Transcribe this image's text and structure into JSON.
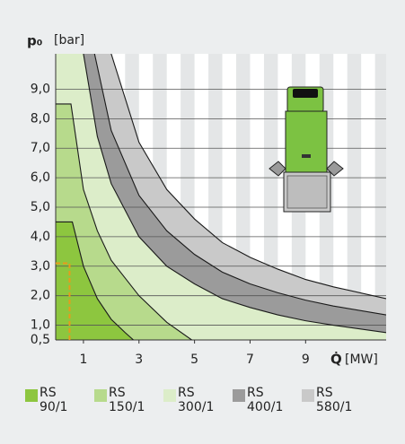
{
  "chart_data": {
    "type": "area",
    "ylabel_symbol": "p₀",
    "ylabel_unit": "[bar]",
    "xlabel_symbol": "Q̇",
    "xlabel_unit": "[MW]",
    "xlim": [
      0,
      11.9
    ],
    "ylim": [
      0.5,
      10.2
    ],
    "xticks": [
      1,
      3,
      5,
      7,
      9
    ],
    "yticks": [
      {
        "value": 0.5,
        "label": "0,5"
      },
      {
        "value": 1,
        "label": "1,0"
      },
      {
        "value": 2,
        "label": "2,0"
      },
      {
        "value": 3,
        "label": "3,0"
      },
      {
        "value": 4,
        "label": "4,0"
      },
      {
        "value": 5,
        "label": "5,0"
      },
      {
        "value": 6,
        "label": "6,0"
      },
      {
        "value": 7,
        "label": "7,0"
      },
      {
        "value": 8,
        "label": "8,0"
      },
      {
        "value": 9,
        "label": "9,0"
      }
    ],
    "grid": true,
    "series": [
      {
        "name": "RS 90/1",
        "color": "#8dc63f",
        "x": [
          0,
          0.6,
          1,
          1.5,
          2,
          2.5,
          2.8
        ],
        "values": [
          4.5,
          4.5,
          3.0,
          1.9,
          1.2,
          0.75,
          0.5
        ]
      },
      {
        "name": "RS 150/1",
        "color": "#b7da8c",
        "x": [
          0,
          0.55,
          1,
          1.5,
          2,
          3,
          4,
          4.9
        ],
        "values": [
          8.5,
          8.5,
          5.6,
          4.2,
          3.2,
          2.0,
          1.1,
          0.5
        ]
      },
      {
        "name": "RS 300/1",
        "color": "#dcedc9",
        "x": [
          1.0,
          1.5,
          2,
          3,
          4,
          5,
          6,
          7,
          8,
          9,
          10,
          11.9
        ],
        "values": [
          10.2,
          7.4,
          5.8,
          4.0,
          3.0,
          2.4,
          1.9,
          1.6,
          1.35,
          1.15,
          1.0,
          0.75
        ]
      },
      {
        "name": "RS 400/1",
        "color": "#9b9b9b",
        "x": [
          1.4,
          2,
          3,
          4,
          5,
          6,
          7,
          8,
          9,
          10,
          11.9
        ],
        "values": [
          10.2,
          7.6,
          5.4,
          4.2,
          3.4,
          2.8,
          2.4,
          2.1,
          1.85,
          1.65,
          1.35
        ]
      },
      {
        "name": "RS 580/1",
        "color": "#c9c9c9",
        "x": [
          2.0,
          3,
          4,
          5,
          6,
          7,
          8,
          9,
          10,
          11.9
        ],
        "values": [
          10.2,
          7.2,
          5.6,
          4.6,
          3.8,
          3.3,
          2.9,
          2.55,
          2.3,
          1.9
        ]
      }
    ],
    "marker": {
      "x": 0.5,
      "y": 3.1,
      "color": "#e89a1c"
    }
  }
}
